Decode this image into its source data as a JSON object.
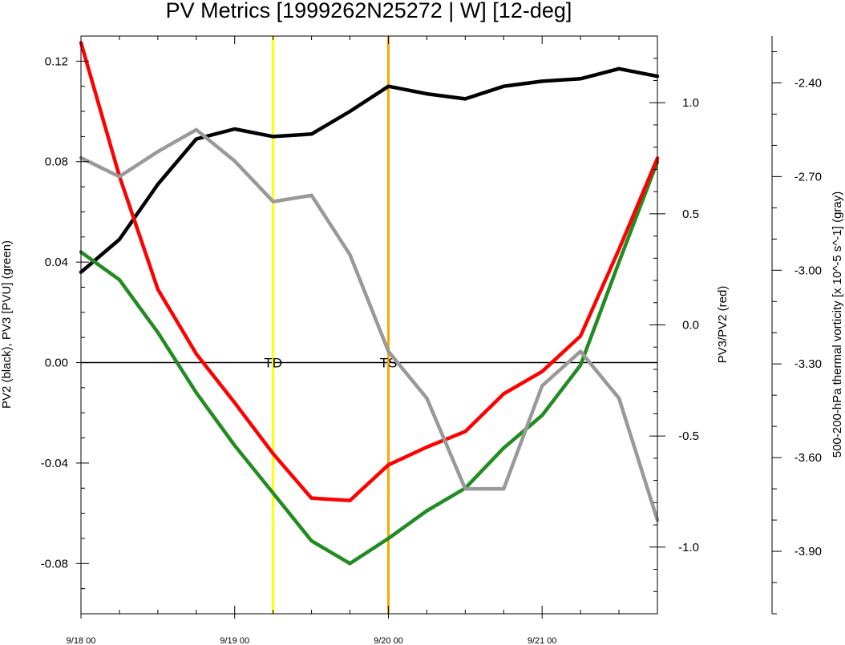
{
  "chart_data": {
    "type": "line",
    "title": "PV Metrics [1999262N25272 | W] [12-deg]",
    "x_ticks": [
      "9/18 00",
      "9/19 00",
      "9/20 00",
      "9/21 00"
    ],
    "x_tick_days": [
      0,
      1,
      2,
      3
    ],
    "xlim_days": [
      0,
      3.75
    ],
    "x_days": [
      0,
      0.25,
      0.5,
      0.75,
      1,
      1.25,
      1.5,
      1.75,
      2,
      2.25,
      2.5,
      2.75,
      3,
      3.25,
      3.5,
      3.75
    ],
    "left_axis": {
      "label": "PV2 (black), PV3 [PVU] (green)",
      "ylim": [
        -0.1,
        0.13
      ],
      "ticks": [
        -0.08,
        -0.04,
        0.0,
        0.04,
        0.08,
        0.12
      ],
      "tick_labels": [
        "-0.08",
        "-0.04",
        "0.00",
        "0.04",
        "0.08",
        "0.12"
      ]
    },
    "right_axis": {
      "label": "PV3/PV2 (red)",
      "ylim": [
        -1.3,
        1.3
      ],
      "ticks": [
        -1.0,
        -0.5,
        0.0,
        0.5,
        1.0
      ],
      "tick_labels": [
        "-1.0",
        "-0.5",
        "0.0",
        "0.5",
        "1.0"
      ]
    },
    "far_right_axis": {
      "label": "500-200-hPa thermal vorticity [x 10^-5 s^-1] (gray)",
      "ylim": [
        -4.1,
        -2.25
      ],
      "ticks": [
        -3.9,
        -3.6,
        -3.3,
        -3.0,
        -2.7,
        -2.4
      ],
      "tick_labels": [
        "-3.90",
        "-3.60",
        "-3.30",
        "-3.00",
        "-2.70",
        "-2.40"
      ]
    },
    "series": [
      {
        "axis": "left",
        "color": "#000000",
        "values": [
          0.036,
          0.049,
          0.071,
          0.089,
          0.093,
          0.09,
          0.091,
          0.1,
          0.11,
          0.107,
          0.105,
          0.11,
          0.112,
          0.113,
          0.117,
          0.114
        ]
      },
      {
        "axis": "left",
        "color": "#228b22",
        "values": [
          0.044,
          0.033,
          0.012,
          -0.012,
          -0.033,
          -0.052,
          -0.071,
          -0.08,
          -0.07,
          -0.059,
          -0.05,
          -0.034,
          -0.021,
          -0.001,
          0.04,
          0.08
        ]
      },
      {
        "axis": "right",
        "color": "#ff0000",
        "values": [
          1.27,
          0.67,
          0.16,
          -0.13,
          -0.35,
          -0.58,
          -0.78,
          -0.79,
          -0.63,
          -0.55,
          -0.48,
          -0.31,
          -0.21,
          -0.05,
          0.34,
          0.75
        ]
      },
      {
        "axis": "far_right",
        "color": "#999999",
        "values": [
          -2.64,
          -2.7,
          -2.62,
          -2.55,
          -2.65,
          -2.78,
          -2.76,
          -2.95,
          -3.26,
          -3.41,
          -3.7,
          -3.7,
          -3.37,
          -3.26,
          -3.41,
          -3.8
        ]
      }
    ],
    "zero_line": 0.0,
    "markers": [
      {
        "label": "TD",
        "day": 1.25,
        "color": "#ffff00"
      },
      {
        "label": "TS",
        "day": 2.0,
        "color": "#ffa500"
      }
    ]
  }
}
